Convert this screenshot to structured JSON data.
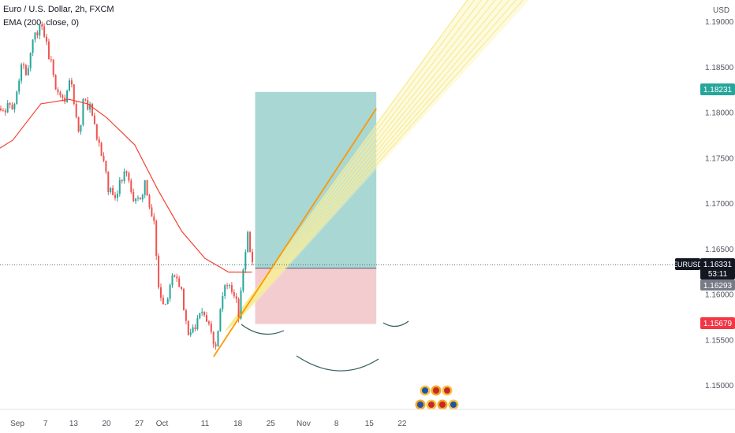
{
  "legend": {
    "symbol_line": "Euro / U.S. Dollar, 2h, FXCM",
    "indicator_line": "EMA (200, close, 0)"
  },
  "y_axis": {
    "unit": "USD",
    "tick_labels": [
      "1.19000",
      "1.18500",
      "1.18000",
      "1.17500",
      "1.17000",
      "1.16500",
      "1.16000",
      "1.15500",
      "1.15000"
    ],
    "tick_values": [
      1.19,
      1.185,
      1.18,
      1.175,
      1.17,
      1.165,
      1.16,
      1.155,
      1.15
    ]
  },
  "x_axis": {
    "tick_labels": [
      "Sep",
      "7",
      "13",
      "20",
      "27",
      "Oct",
      "11",
      "18",
      "25",
      "Nov",
      "8",
      "15",
      "22"
    ]
  },
  "price_tags": {
    "target": {
      "label": "1.18231",
      "value": 1.18231,
      "color": "#26a69a"
    },
    "symbol": {
      "label": "EURUSD",
      "color": "#131722"
    },
    "last": {
      "label": "1.16331",
      "value": 1.16331,
      "countdown": "53:11",
      "color": "#131722"
    },
    "entry": {
      "label": "1.16293",
      "value": 1.16293,
      "color": "#787b86"
    },
    "stop": {
      "label": "1.15679",
      "value": 1.15679,
      "color": "#f23645"
    }
  },
  "colors": {
    "up": "#26a69a",
    "down": "#ef5350",
    "ema": "#f44336",
    "trendline": "#ff9800",
    "fan": "#f5e67a",
    "profit_zone": "#9fd3cf",
    "loss_zone": "#f2c7cb",
    "arc": "#2f5e5a",
    "last_price_line": "#4a6a6a"
  },
  "chart_data": {
    "type": "candlestick",
    "title": "Euro / U.S. Dollar, 2h, FXCM",
    "symbol": "EURUSD",
    "timeframe": "2h",
    "ylim": [
      1.1465,
      1.1925
    ],
    "y_scale": "linear",
    "grid": false,
    "close_path": [
      {
        "date": "Aug 31",
        "close": 1.1805
      },
      {
        "date": "Sep 2",
        "close": 1.186
      },
      {
        "date": "Sep 3",
        "close": 1.184
      },
      {
        "date": "Sep 4",
        "close": 1.188
      },
      {
        "date": "Sep 6",
        "close": 1.1895
      },
      {
        "date": "Sep 8",
        "close": 1.1855
      },
      {
        "date": "Sep 9",
        "close": 1.183
      },
      {
        "date": "Sep 11",
        "close": 1.1815
      },
      {
        "date": "Sep 12",
        "close": 1.184
      },
      {
        "date": "Sep 14",
        "close": 1.178
      },
      {
        "date": "Sep 15",
        "close": 1.1815
      },
      {
        "date": "Sep 17",
        "close": 1.18
      },
      {
        "date": "Sep 18",
        "close": 1.177
      },
      {
        "date": "Sep 19",
        "close": 1.1755
      },
      {
        "date": "Sep 20",
        "close": 1.172
      },
      {
        "date": "Sep 22",
        "close": 1.171
      },
      {
        "date": "Sep 24",
        "close": 1.174
      },
      {
        "date": "Sep 26",
        "close": 1.17
      },
      {
        "date": "Sep 28",
        "close": 1.172
      },
      {
        "date": "Sep 30",
        "close": 1.168
      },
      {
        "date": "Oct 1",
        "close": 1.16
      },
      {
        "date": "Oct 2",
        "close": 1.1585
      },
      {
        "date": "Oct 3",
        "close": 1.1595
      },
      {
        "date": "Oct 4",
        "close": 1.162
      },
      {
        "date": "Oct 6",
        "close": 1.16
      },
      {
        "date": "Oct 7",
        "close": 1.156
      },
      {
        "date": "Oct 9",
        "close": 1.1565
      },
      {
        "date": "Oct 10",
        "close": 1.158
      },
      {
        "date": "Oct 11",
        "close": 1.157
      },
      {
        "date": "Oct 12",
        "close": 1.156
      },
      {
        "date": "Oct 13",
        "close": 1.1535
      },
      {
        "date": "Oct 14",
        "close": 1.1575
      },
      {
        "date": "Oct 15",
        "close": 1.161
      },
      {
        "date": "Oct 16",
        "close": 1.1615
      },
      {
        "date": "Oct 17",
        "close": 1.1605
      },
      {
        "date": "Oct 18",
        "close": 1.158
      },
      {
        "date": "Oct 19",
        "close": 1.1625
      },
      {
        "date": "Oct 20",
        "close": 1.1665
      },
      {
        "date": "Oct 21",
        "close": 1.1633
      }
    ],
    "ema_200": [
      {
        "date": "Aug 31",
        "value": 1.177
      },
      {
        "date": "Sep 6",
        "value": 1.181
      },
      {
        "date": "Sep 12",
        "value": 1.1815
      },
      {
        "date": "Sep 16",
        "value": 1.181
      },
      {
        "date": "Sep 20",
        "value": 1.1795
      },
      {
        "date": "Sep 26",
        "value": 1.1765
      },
      {
        "date": "Oct 1",
        "value": 1.1715
      },
      {
        "date": "Oct 6",
        "value": 1.167
      },
      {
        "date": "Oct 11",
        "value": 1.164
      },
      {
        "date": "Oct 16",
        "value": 1.1625
      },
      {
        "date": "Oct 21",
        "value": 1.1625
      }
    ],
    "last_price": 1.16331,
    "long_position": {
      "entry": 1.16293,
      "target": 1.18231,
      "stop": 1.15679,
      "from": "Oct 21",
      "to": "Nov 16"
    },
    "trendline": [
      {
        "date": "Oct 13",
        "value": 1.1532
      },
      {
        "date": "Nov 16",
        "value": 1.1805
      }
    ]
  }
}
